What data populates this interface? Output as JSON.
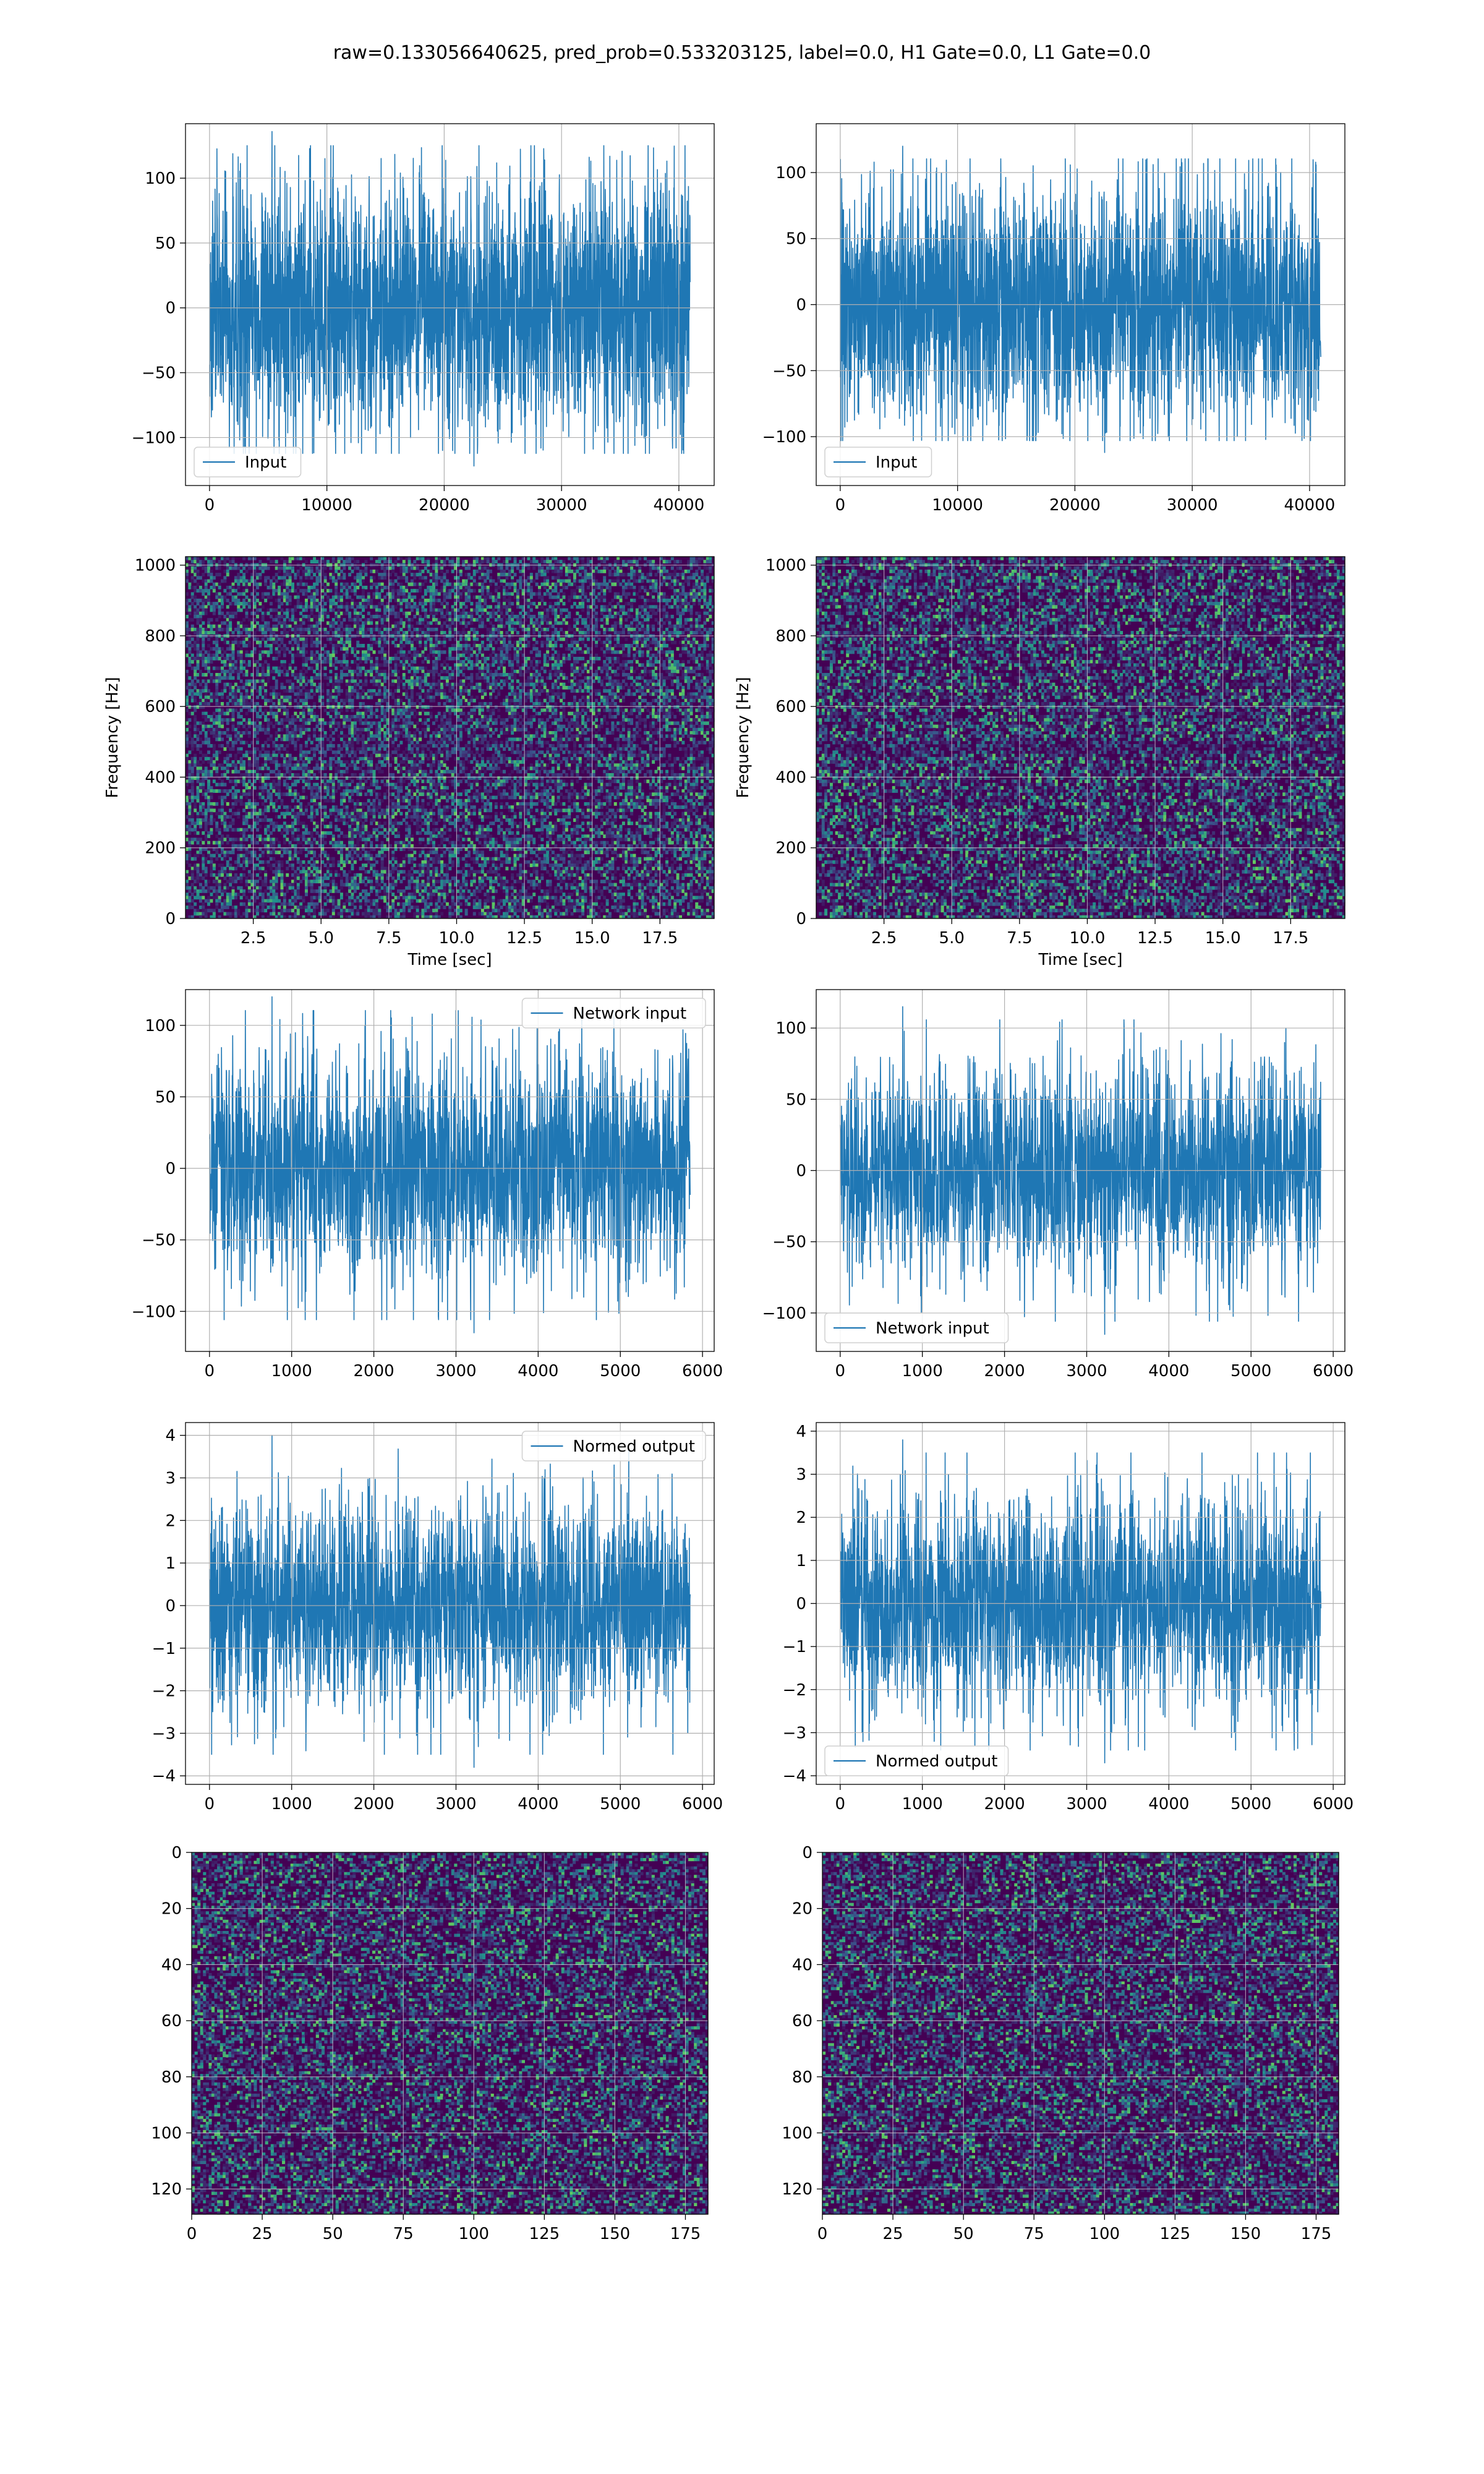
{
  "figure_title": "raw=0.133056640625, pred_prob=0.533203125, label=0.0, H1 Gate=0.0, L1 Gate=0.0",
  "colors": {
    "line": "#1f77b4",
    "grid": "#b0b0b0",
    "viridis_low": "#440154"
  },
  "chart_data": [
    {
      "type": "line",
      "name": "H1 input",
      "legend": "Input",
      "legend_loc": "lower-left",
      "x_range": [
        0,
        40960
      ],
      "y_amplitude": 52,
      "y_extremes": [
        136,
        -122
      ],
      "xlim": [
        -2048,
        43008
      ],
      "ylim": [
        -137,
        142
      ],
      "xticks": [
        0,
        10000,
        20000,
        30000,
        40000
      ],
      "yticks": [
        -100,
        -50,
        0,
        50,
        100
      ],
      "xlabel": "",
      "ylabel": "",
      "grid": true
    },
    {
      "type": "line",
      "name": "L1 input",
      "legend": "Input",
      "legend_loc": "lower-left",
      "x_range": [
        0,
        40960
      ],
      "y_amplitude": 48,
      "y_extremes": [
        120,
        -112
      ],
      "xlim": [
        -2048,
        43008
      ],
      "ylim": [
        -137,
        137
      ],
      "xticks": [
        0,
        10000,
        20000,
        30000,
        40000
      ],
      "yticks": [
        -100,
        -50,
        0,
        50,
        100
      ],
      "xlabel": "",
      "ylabel": "",
      "grid": true
    },
    {
      "type": "heatmap",
      "name": "H1 spectrogram",
      "colormap": "viridis",
      "xlim": [
        0,
        19.5
      ],
      "ylim": [
        0,
        1024
      ],
      "xticks": [
        2.5,
        5.0,
        7.5,
        10.0,
        12.5,
        15.0,
        17.5
      ],
      "yticks": [
        0,
        200,
        400,
        600,
        800,
        1000
      ],
      "xlabel": "Time [sec]",
      "ylabel": "Frequency [Hz]",
      "grid": true
    },
    {
      "type": "heatmap",
      "name": "L1 spectrogram",
      "colormap": "viridis",
      "xlim": [
        0,
        19.5
      ],
      "ylim": [
        0,
        1024
      ],
      "xticks": [
        2.5,
        5.0,
        7.5,
        10.0,
        12.5,
        15.0,
        17.5
      ],
      "yticks": [
        0,
        200,
        400,
        600,
        800,
        1000
      ],
      "xlabel": "Time [sec]",
      "ylabel": "Frequency [Hz]",
      "grid": true
    },
    {
      "type": "line",
      "name": "H1 network input",
      "legend": "Network input",
      "legend_loc": "upper-right",
      "x_range": [
        0,
        5850
      ],
      "y_amplitude": 42,
      "y_extremes": [
        120,
        -115
      ],
      "xlim": [
        -292,
        6142
      ],
      "ylim": [
        -128,
        125
      ],
      "xticks": [
        0,
        1000,
        2000,
        3000,
        4000,
        5000,
        6000
      ],
      "yticks": [
        -100,
        -50,
        0,
        50,
        100
      ],
      "xlabel": "",
      "ylabel": "",
      "grid": true
    },
    {
      "type": "line",
      "name": "L1 network input",
      "legend": "Network input",
      "legend_loc": "lower-left",
      "x_range": [
        0,
        5850
      ],
      "y_amplitude": 40,
      "y_extremes": [
        115,
        -115
      ],
      "xlim": [
        -292,
        6142
      ],
      "ylim": [
        -127,
        127
      ],
      "xticks": [
        0,
        1000,
        2000,
        3000,
        4000,
        5000,
        6000
      ],
      "yticks": [
        -100,
        -50,
        0,
        50,
        100
      ],
      "xlabel": "",
      "ylabel": "",
      "grid": true
    },
    {
      "type": "line",
      "name": "H1 normed output",
      "legend": "Normed output",
      "legend_loc": "upper-right",
      "x_range": [
        0,
        5850
      ],
      "y_amplitude": 1.3,
      "y_extremes": [
        4.0,
        -3.8
      ],
      "xlim": [
        -292,
        6142
      ],
      "ylim": [
        -4.2,
        4.3
      ],
      "xticks": [
        0,
        1000,
        2000,
        3000,
        4000,
        5000,
        6000
      ],
      "yticks": [
        -4,
        -3,
        -2,
        -1,
        0,
        1,
        2,
        3,
        4
      ],
      "xlabel": "",
      "ylabel": "",
      "grid": true
    },
    {
      "type": "line",
      "name": "L1 normed output",
      "legend": "Normed output",
      "legend_loc": "lower-left",
      "x_range": [
        0,
        5850
      ],
      "y_amplitude": 1.3,
      "y_extremes": [
        3.8,
        -3.7
      ],
      "xlim": [
        -292,
        6142
      ],
      "ylim": [
        -4.2,
        4.2
      ],
      "xticks": [
        0,
        1000,
        2000,
        3000,
        4000,
        5000,
        6000
      ],
      "yticks": [
        -4,
        -3,
        -2,
        -1,
        0,
        1,
        2,
        3,
        4
      ],
      "xlabel": "",
      "ylabel": "",
      "grid": true
    },
    {
      "type": "heatmap",
      "name": "H1 network image",
      "colormap": "viridis",
      "cols": 183,
      "rows": 129,
      "xlim": [
        0,
        183
      ],
      "ylim": [
        129,
        0
      ],
      "xticks": [
        0,
        25,
        50,
        75,
        100,
        125,
        150,
        175
      ],
      "yticks": [
        0,
        20,
        40,
        60,
        80,
        100,
        120
      ],
      "xlabel": "",
      "ylabel": "",
      "grid": true
    },
    {
      "type": "heatmap",
      "name": "L1 network image",
      "colormap": "viridis",
      "cols": 183,
      "rows": 129,
      "xlim": [
        0,
        183
      ],
      "ylim": [
        129,
        0
      ],
      "xticks": [
        0,
        25,
        50,
        75,
        100,
        125,
        150,
        175
      ],
      "yticks": [
        0,
        20,
        40,
        60,
        80,
        100,
        120
      ],
      "xlabel": "",
      "ylabel": "",
      "grid": true
    }
  ]
}
